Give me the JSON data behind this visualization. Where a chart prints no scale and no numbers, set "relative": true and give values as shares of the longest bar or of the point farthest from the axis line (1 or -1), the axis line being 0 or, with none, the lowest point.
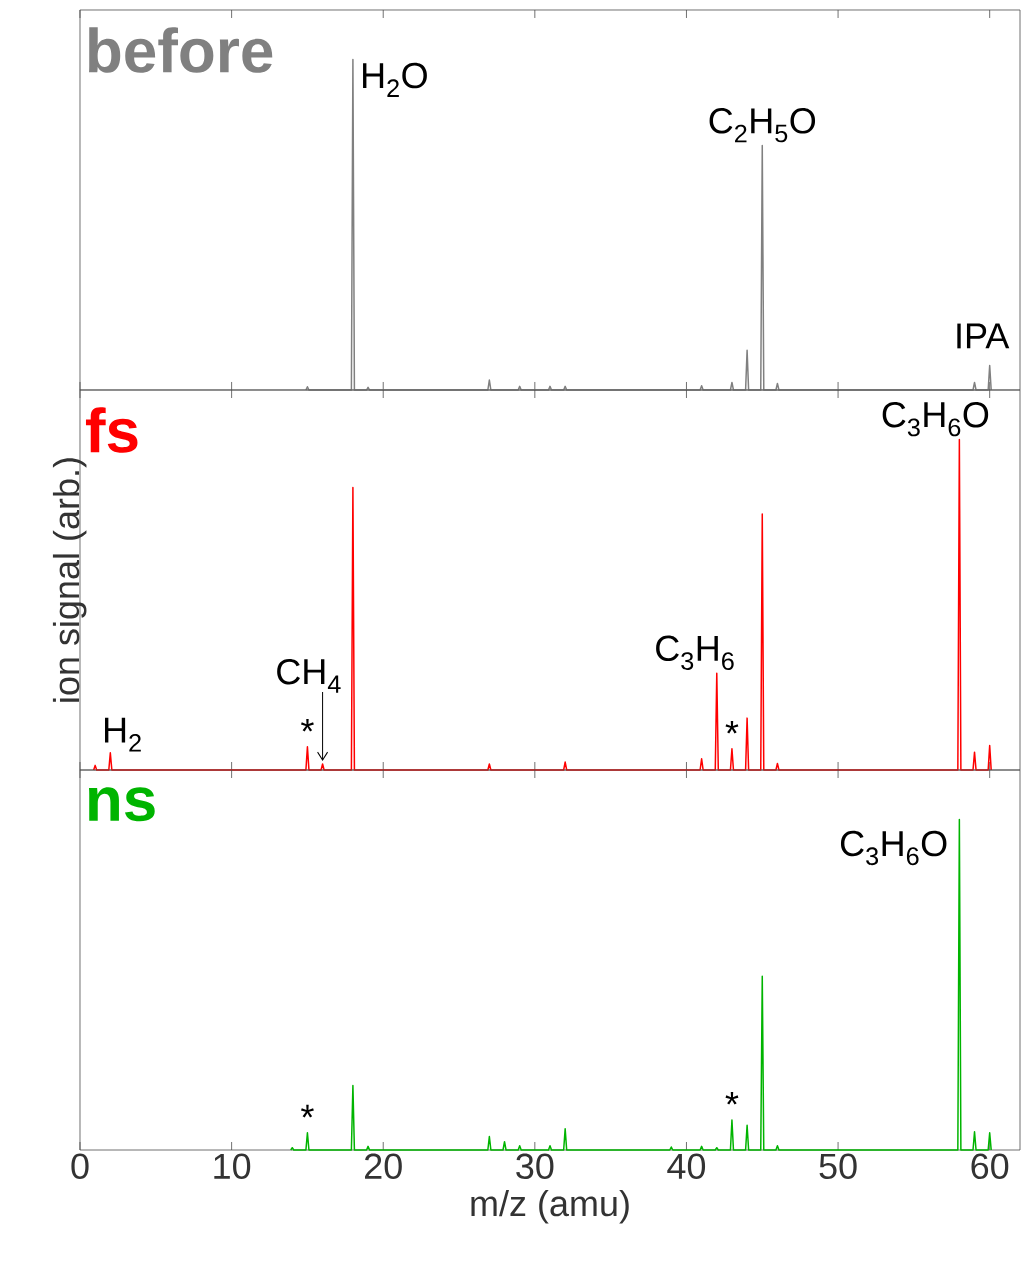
{
  "chart_data": [
    {
      "type": "line",
      "title": "before",
      "relative": true,
      "xlim": [
        0,
        62
      ],
      "xticks": [
        0,
        10,
        20,
        30,
        40,
        50,
        60
      ],
      "tick_labels": false,
      "x": [
        14.9,
        15,
        15.1,
        17.9,
        18,
        18.1,
        18.9,
        19,
        19.1,
        26.9,
        27,
        27.1,
        28.9,
        29,
        29.1,
        30.9,
        31,
        31.1,
        31.9,
        32,
        32.1,
        40.9,
        41,
        41.1,
        42.9,
        43,
        43.1,
        43.9,
        44,
        44.1,
        44.9,
        45,
        45.1,
        45.9,
        46,
        46.1,
        58.9,
        59,
        59.1,
        59.9,
        60,
        60.1
      ],
      "series": [
        {
          "color": "#808080",
          "values": [
            0,
            0.01,
            0,
            0,
            1,
            0,
            0,
            0.008,
            0,
            0,
            0.03,
            0,
            0,
            0.011,
            0,
            0,
            0.011,
            0,
            0,
            0.011,
            0,
            0,
            0.013,
            0,
            0,
            0.023,
            0,
            0,
            0.12,
            0,
            0,
            0.74,
            0,
            0,
            0.02,
            0,
            0,
            0.023,
            0,
            0,
            0.074,
            0
          ]
        }
      ],
      "annotations": [
        {
          "text": "H$_{2}$O",
          "x": 18,
          "y": 1
        },
        {
          "text": "C$_{2}$H$_{5}$O",
          "x": 45,
          "y": 0.74
        },
        {
          "text": "IPA",
          "x": 60,
          "y": 0.074
        }
      ]
    },
    {
      "type": "line",
      "title": "fs",
      "relative": true,
      "xlim": [
        0,
        62
      ],
      "xticks": [
        0,
        10,
        20,
        30,
        40,
        50,
        60
      ],
      "tick_labels": false,
      "ylabel": "ion signal (arb.)",
      "x": [
        0.9,
        1,
        1.1,
        1.9,
        2,
        2.1,
        14.9,
        15,
        15.1,
        15.9,
        16,
        16.1,
        17.9,
        18,
        18.1,
        26.9,
        27,
        27.1,
        31.9,
        32,
        32.1,
        40.9,
        41,
        41.1,
        41.9,
        42,
        42.1,
        42.9,
        43,
        43.1,
        43.9,
        44,
        44.1,
        44.9,
        45,
        45.1,
        45.9,
        46,
        46.1,
        57.9,
        58,
        58.1,
        58.9,
        59,
        59.1,
        59.9,
        60,
        60.1
      ],
      "series": [
        {
          "color": "#ff0000",
          "values": [
            0,
            0.014,
            0,
            0,
            0.052,
            0,
            0,
            0.07,
            0,
            0,
            0.018,
            0,
            0,
            0.855,
            0,
            0,
            0.018,
            0,
            0,
            0.024,
            0,
            0,
            0.034,
            0,
            0,
            0.293,
            0,
            0,
            0.064,
            0,
            0,
            0.157,
            0,
            0,
            0.775,
            0,
            0,
            0.02,
            0,
            0,
            1,
            0,
            0,
            0.054,
            0,
            0,
            0.074,
            0
          ]
        }
      ],
      "annotations": [
        {
          "text": "C$_{3}$H$_{6}$O",
          "x": 58,
          "y": 1
        },
        {
          "text": "H$_{2}$",
          "x": 2,
          "y": 0.052
        },
        {
          "text": "CH$_{4}$",
          "x": 16,
          "y": 0.018
        },
        {
          "text": "C$_{3}$H$_{6}$",
          "x": 42,
          "y": 0.293
        },
        {
          "text": "*",
          "x": 15,
          "y": 0.07
        },
        {
          "text": "*",
          "x": 43,
          "y": 0.064
        }
      ]
    },
    {
      "type": "line",
      "title": "ns",
      "relative": true,
      "xlim": [
        0,
        62
      ],
      "xticks": [
        0,
        10,
        20,
        30,
        40,
        50,
        60
      ],
      "tick_labels": "x",
      "xlabel": "m/z (amu)",
      "x": [
        13.9,
        14,
        14.1,
        14.9,
        15,
        15.1,
        17.9,
        18,
        18.1,
        18.9,
        19,
        19.1,
        26.9,
        27,
        27.1,
        27.9,
        28,
        28.1,
        28.9,
        29,
        29.1,
        30.9,
        31,
        31.1,
        31.9,
        32,
        32.1,
        38.9,
        39,
        39.1,
        40.9,
        41,
        41.1,
        41.9,
        42,
        42.1,
        42.9,
        43,
        43.1,
        43.9,
        44,
        44.1,
        44.9,
        45,
        45.1,
        45.9,
        46,
        46.1,
        57.9,
        58,
        58.1,
        58.9,
        59,
        59.1,
        59.9,
        60,
        60.1
      ],
      "series": [
        {
          "color": "#00b400",
          "values": [
            0,
            0.007,
            0,
            0,
            0.052,
            0,
            0,
            0.195,
            0,
            0,
            0.011,
            0,
            0,
            0.041,
            0,
            0,
            0.025,
            0,
            0,
            0.013,
            0,
            0,
            0.013,
            0,
            0,
            0.064,
            0,
            0,
            0.009,
            0,
            0,
            0.011,
            0,
            0,
            0.007,
            0,
            0,
            0.091,
            0,
            0,
            0.075,
            0,
            0,
            0.526,
            0,
            0,
            0.013,
            0,
            0,
            1,
            0,
            0,
            0.055,
            0,
            0,
            0.052,
            0
          ]
        }
      ],
      "annotations": [
        {
          "text": "C$_{3}$H$_{6}$O",
          "x": 58,
          "y": 1
        },
        {
          "text": "*",
          "x": 15,
          "y": 0.052
        },
        {
          "text": "*",
          "x": 43,
          "y": 0.091
        }
      ]
    }
  ]
}
